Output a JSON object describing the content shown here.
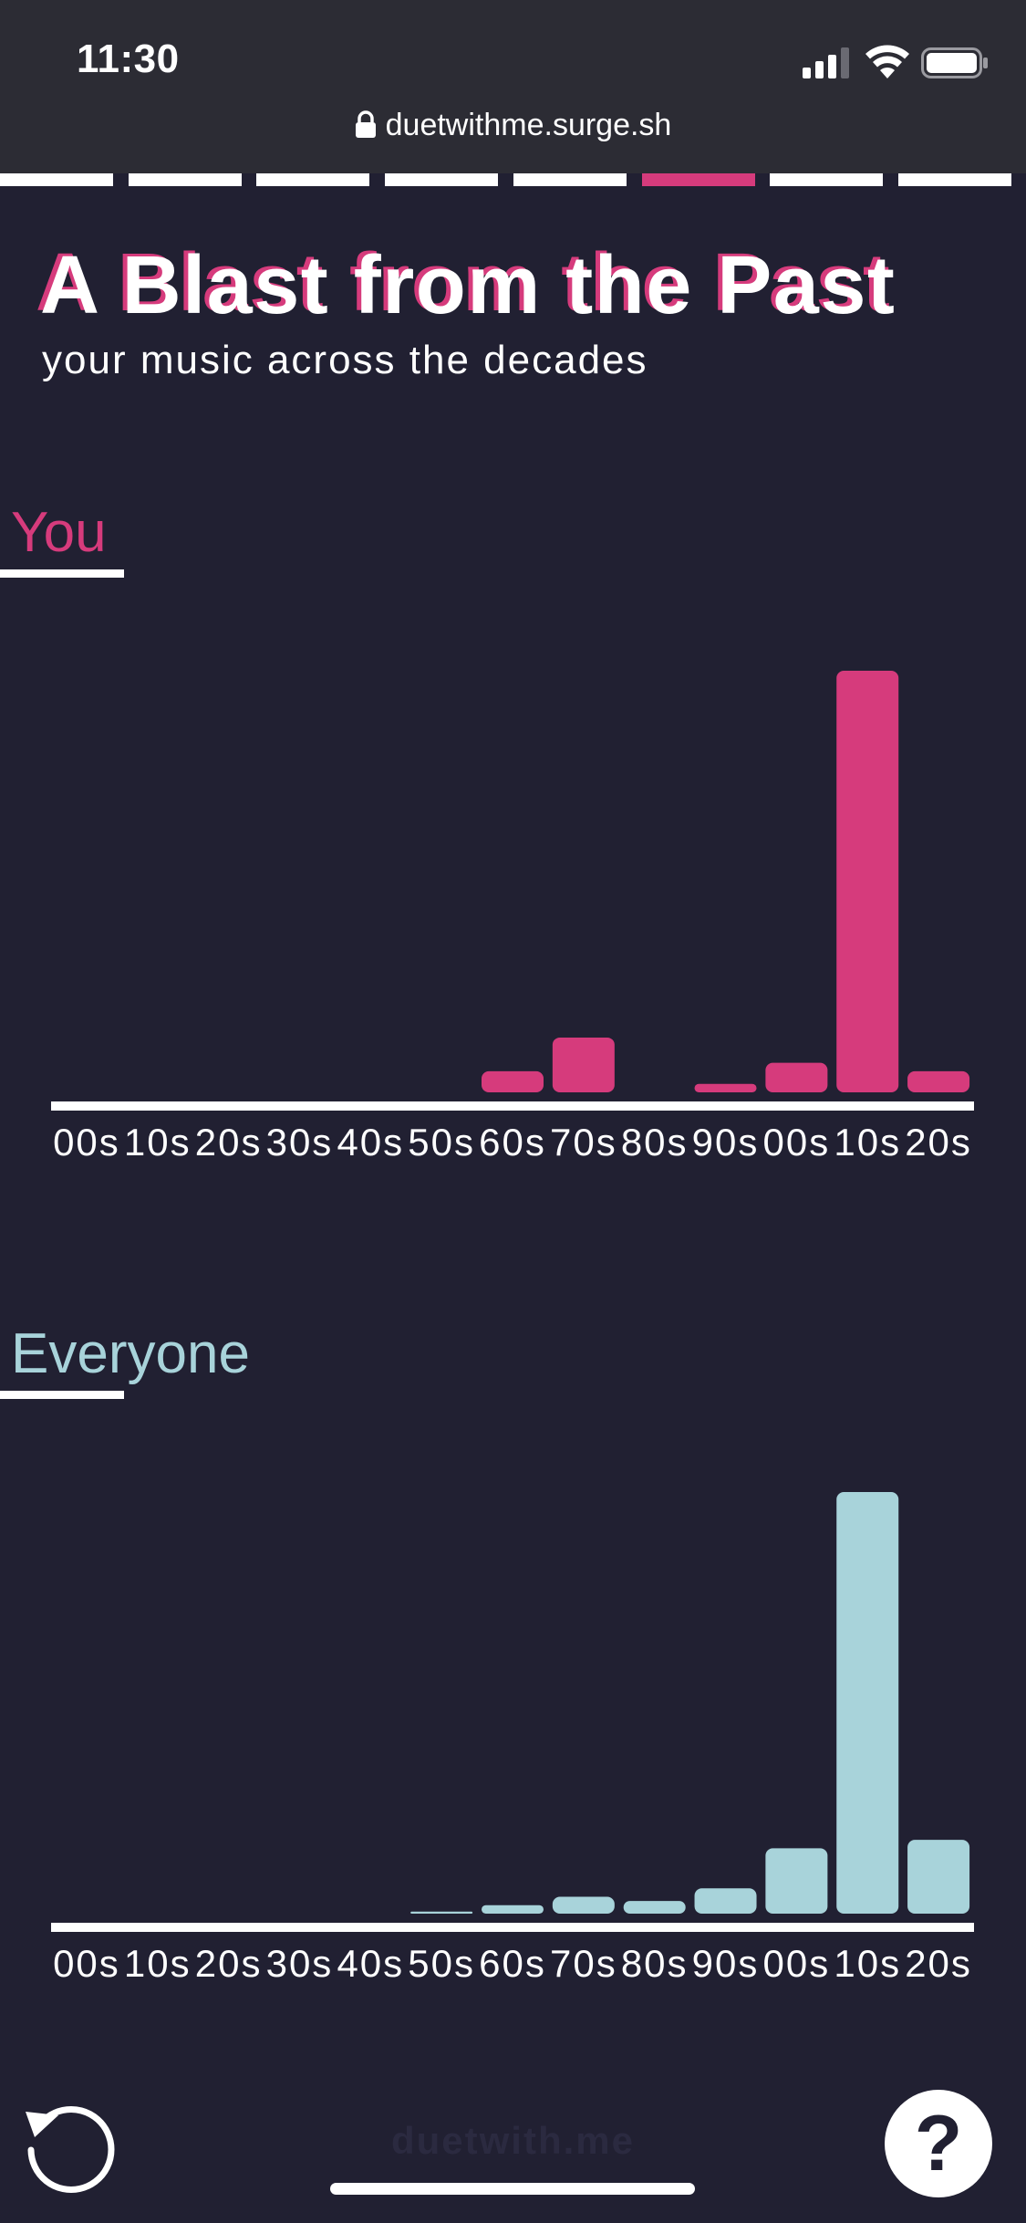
{
  "status_bar": {
    "time": "11:30",
    "icons": [
      "signal-icon",
      "wifi-icon",
      "battery-icon"
    ]
  },
  "browser": {
    "url": "duetwithme.surge.sh",
    "lock_icon": "lock-icon"
  },
  "progress": {
    "total_steps": 8,
    "active_step": 6,
    "active_color": "#d63b7c",
    "inactive_color": "#ffffff"
  },
  "page": {
    "title": "A Blast from the Past",
    "subtitle": "your music across the decades"
  },
  "sections": {
    "you_label": "You",
    "everyone_label": "Everyone"
  },
  "chart_data": [
    {
      "type": "bar",
      "categories": [
        "00s",
        "10s",
        "20s",
        "30s",
        "40s",
        "50s",
        "60s",
        "70s",
        "80s",
        "90s",
        "00s",
        "10s",
        "20s"
      ],
      "values": [
        0,
        0,
        0,
        0,
        0,
        0,
        5,
        13,
        0,
        2,
        7,
        100,
        5
      ],
      "color": "#d63b7c",
      "ylim": [
        0,
        100
      ],
      "grid": false,
      "legend": "none"
    },
    {
      "type": "bar",
      "categories": [
        "00s",
        "10s",
        "20s",
        "30s",
        "40s",
        "50s",
        "60s",
        "70s",
        "80s",
        "90s",
        "00s",
        "10s",
        "20s"
      ],
      "values": [
        0,
        0,
        0,
        0,
        0,
        0.5,
        2,
        4,
        3,
        6,
        15.5,
        100,
        17.5
      ],
      "color": "#a8d3da",
      "ylim": [
        0,
        100
      ],
      "grid": false,
      "legend": "none"
    }
  ],
  "footer": {
    "brand": "duetwith.me",
    "help_label": "?",
    "undo_icon": "undo-icon"
  },
  "colors": {
    "background": "#212032",
    "status_bar": "#2c2c34",
    "accent_pink": "#d63b7c",
    "accent_teal": "#a8d3da"
  }
}
